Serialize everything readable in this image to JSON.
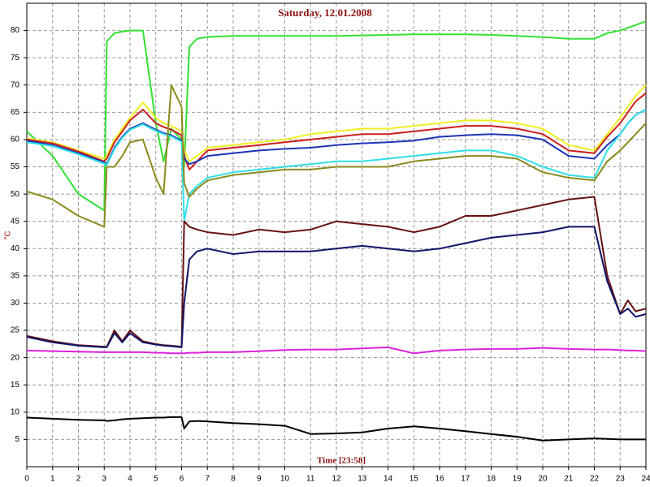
{
  "chart_data": {
    "type": "line",
    "title": "Saturday, 12.01.2008",
    "x_label": "Time [23:58]",
    "y_label": "°C",
    "x": [
      0,
      1,
      2,
      3,
      3.1,
      3.4,
      3.7,
      4,
      4.5,
      5,
      5.3,
      5.6,
      6,
      6.1,
      6.3,
      6.6,
      7,
      8,
      9,
      10,
      11,
      12,
      13,
      14,
      15,
      16,
      17,
      18,
      19,
      20,
      21,
      22,
      22.5,
      23,
      23.3,
      23.6,
      24
    ],
    "xlim": [
      0,
      24
    ],
    "xticks": [
      0,
      1,
      2,
      3,
      4,
      5,
      6,
      7,
      8,
      9,
      10,
      11,
      12,
      13,
      14,
      15,
      16,
      17,
      18,
      19,
      20,
      21,
      22,
      23,
      24
    ],
    "ylim": [
      0,
      85
    ],
    "yticks": [
      5,
      10,
      15,
      20,
      25,
      30,
      35,
      40,
      45,
      50,
      55,
      60,
      65,
      70,
      75,
      80
    ],
    "grid": true,
    "series": [
      {
        "color": "#33e033",
        "values": [
          61.5,
          57,
          50,
          47,
          78,
          79.5,
          79.8,
          80,
          80,
          63,
          56,
          62,
          60,
          55,
          77,
          78.5,
          78.8,
          79,
          79,
          79,
          79,
          79,
          79.1,
          79.2,
          79.3,
          79.3,
          79.3,
          79.2,
          79,
          78.8,
          78.5,
          78.5,
          79.5,
          80,
          80.5,
          81,
          81.7
        ]
      },
      {
        "color": "#f0f020",
        "values": [
          60.2,
          59.5,
          58,
          56.5,
          57,
          60,
          62,
          64,
          66.8,
          64,
          63,
          62.5,
          61.5,
          58,
          56,
          57,
          58.5,
          59,
          59.5,
          60,
          61,
          61.5,
          62,
          62,
          62.5,
          63,
          63.5,
          63.5,
          63,
          62,
          59,
          58,
          61,
          64,
          66,
          68,
          70
        ]
      },
      {
        "color": "#cc1f1f",
        "values": [
          60,
          59.3,
          57.8,
          56,
          56.5,
          59.5,
          61.5,
          63.5,
          65.5,
          63,
          62.3,
          61.8,
          60.8,
          57,
          54.5,
          56,
          58,
          58.5,
          59,
          59.5,
          60,
          60.5,
          61,
          61,
          61.5,
          62,
          62.5,
          62.5,
          62,
          61,
          58,
          57.5,
          60.5,
          63,
          65,
          67,
          68.5
        ]
      },
      {
        "color": "#2033b8",
        "values": [
          59.8,
          59,
          57.5,
          55.8,
          55.5,
          58.5,
          60.5,
          62,
          63,
          61.8,
          61.2,
          60.8,
          59.8,
          56.5,
          55.5,
          56,
          57,
          57.5,
          58,
          58.3,
          58.5,
          59,
          59.3,
          59.5,
          59.8,
          60.5,
          60.8,
          61,
          60.8,
          60,
          57,
          56.5,
          59,
          61,
          63,
          64.5,
          65.5
        ]
      },
      {
        "color": "#30e0e8",
        "values": [
          59.5,
          58.8,
          57.3,
          55.6,
          55.3,
          58.3,
          60.3,
          61.8,
          62.8,
          61.6,
          61,
          60.6,
          59.6,
          45,
          50,
          51.5,
          53,
          54,
          54.5,
          55,
          55.5,
          56,
          56,
          56.5,
          57,
          57.5,
          58,
          58,
          57,
          55,
          53.5,
          53,
          58,
          61,
          63,
          64.5,
          65.5
        ]
      },
      {
        "color": "#8a8a1e",
        "values": [
          50.5,
          49,
          46,
          44,
          55,
          55,
          57,
          59.5,
          60,
          53,
          50,
          70,
          66,
          52,
          49.5,
          51,
          52.5,
          53.5,
          54,
          54.5,
          54.5,
          55,
          55,
          55,
          56,
          56.5,
          57,
          57,
          56.5,
          54,
          53,
          52.5,
          56,
          58,
          59.5,
          61,
          63
        ]
      },
      {
        "color": "#661212",
        "values": [
          24,
          23,
          22.3,
          22,
          22,
          25,
          23,
          25,
          23,
          22.5,
          22.3,
          22.2,
          22,
          45,
          44,
          43.5,
          43,
          42.5,
          43.5,
          43,
          43.5,
          45,
          44.5,
          44,
          43,
          44,
          46,
          46,
          47,
          48,
          49,
          49.5,
          35,
          28,
          30.5,
          28.5,
          29
        ]
      },
      {
        "color": "#12156a",
        "values": [
          23.8,
          22.8,
          22.2,
          21.9,
          21.9,
          24.5,
          22.8,
          24.5,
          22.8,
          22.4,
          22.2,
          22.1,
          21.9,
          30,
          38,
          39.5,
          40,
          39,
          39.5,
          39.5,
          39.5,
          40,
          40.5,
          40,
          39.5,
          40,
          41,
          42,
          42.5,
          43,
          44,
          44,
          34,
          28,
          29,
          27.5,
          28
        ]
      },
      {
        "color": "#dd22dd",
        "values": [
          21.3,
          21.2,
          21.1,
          21,
          21,
          21,
          21,
          21,
          21,
          20.9,
          20.9,
          20.8,
          20.8,
          20.8,
          20.9,
          20.9,
          21,
          21,
          21.2,
          21.4,
          21.5,
          21.5,
          21.7,
          21.9,
          20.8,
          21.3,
          21.5,
          21.6,
          21.6,
          21.8,
          21.6,
          21.5,
          21.5,
          21.4,
          21.3,
          21.3,
          21.2
        ]
      },
      {
        "color": "#000000",
        "values": [
          9,
          8.8,
          8.6,
          8.5,
          8.4,
          8.5,
          8.7,
          8.8,
          8.9,
          9,
          9,
          9.1,
          9.1,
          7,
          8.3,
          8.4,
          8.3,
          8,
          7.8,
          7.5,
          6,
          6.1,
          6.3,
          7,
          7.4,
          7,
          6.5,
          6,
          5.5,
          4.8,
          5,
          5.2,
          5.1,
          5,
          5,
          5,
          5
        ]
      }
    ]
  }
}
